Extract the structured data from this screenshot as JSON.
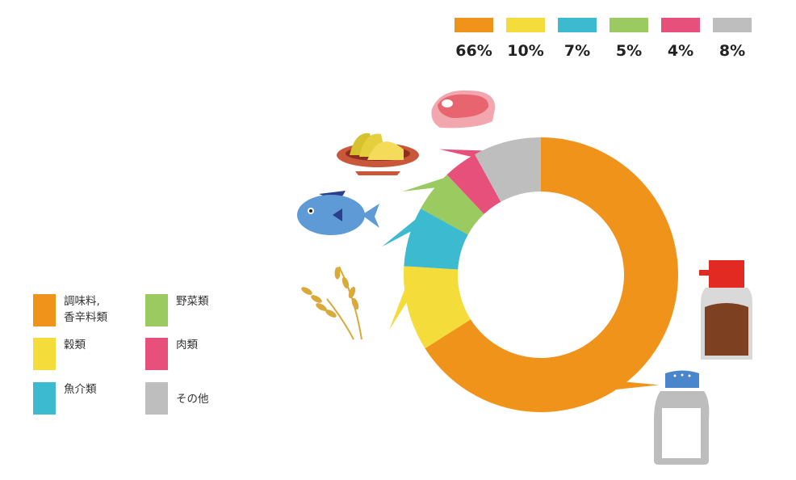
{
  "chart_data": {
    "type": "pie",
    "donut": true,
    "categories": [
      "調味料,\n香辛料類",
      "穀類",
      "魚介類",
      "野菜類",
      "肉類",
      "その他"
    ],
    "values": [
      66,
      10,
      7,
      5,
      4,
      8
    ],
    "value_labels": [
      "66%",
      "10%",
      "7%",
      "5%",
      "4%",
      "8%"
    ],
    "colors": [
      "#F0931B",
      "#F4DC3B",
      "#3BBAD0",
      "#9ACA60",
      "#E8507C",
      "#BEBEBE"
    ],
    "direction": "clockwise from top",
    "legend_placement": "bottom-left",
    "value_legend_placement": "top-right"
  },
  "icons": [
    "grain-icon",
    "fish-icon",
    "potato-dish-icon",
    "meat-icon",
    "soy-sauce-bottle-icon",
    "salt-shaker-icon"
  ]
}
